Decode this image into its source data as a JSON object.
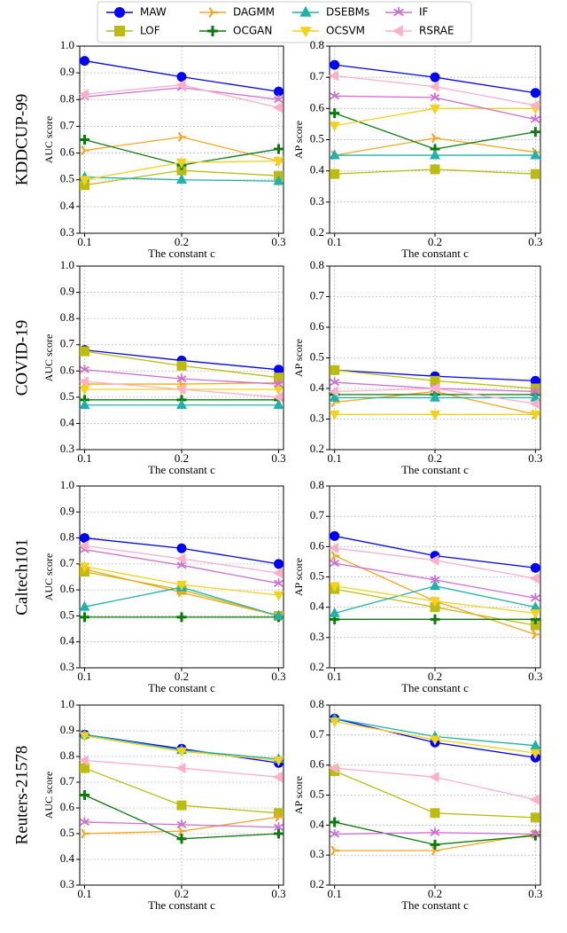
{
  "chart_data": [
    {
      "type": "line",
      "row_label": "KDDCUP-99",
      "xlabel": "The constant c",
      "ylabel": "AUC score",
      "x": [
        0.1,
        0.2,
        0.3
      ],
      "xlim": [
        0.095,
        0.305
      ],
      "xticks": [
        0.1,
        0.2,
        0.3
      ],
      "ylim": [
        0.3,
        1.0
      ],
      "yticks": [
        0.3,
        0.4,
        0.5,
        0.6,
        0.7,
        0.8,
        0.9,
        {
          "value": 1.0,
          "label": "1.0"
        }
      ],
      "grid": true,
      "series": [
        {
          "name": "MAW",
          "color": "#0000ff",
          "marker": "circle",
          "values": [
            0.945,
            0.885,
            0.83
          ]
        },
        {
          "name": "LOF",
          "color": "#bcbc10",
          "marker": "square",
          "values": [
            0.48,
            0.535,
            0.515
          ]
        },
        {
          "name": "DAGMM",
          "color": "#f5a623",
          "marker": "tri",
          "values": [
            0.61,
            0.66,
            0.57
          ]
        },
        {
          "name": "OCGAN",
          "color": "#0a7a0a",
          "marker": "plus",
          "values": [
            0.65,
            0.555,
            0.615
          ]
        },
        {
          "name": "DSEBMs",
          "color": "#20b2aa",
          "marker": "up",
          "values": [
            0.51,
            0.5,
            0.495
          ]
        },
        {
          "name": "OCSVM",
          "color": "#f2d21b",
          "marker": "down",
          "values": [
            0.5,
            0.565,
            0.57
          ]
        },
        {
          "name": "IF",
          "color": "#d070d0",
          "marker": "star",
          "values": [
            0.81,
            0.845,
            0.8
          ]
        },
        {
          "name": "RSRAE",
          "color": "#ffb0c8",
          "marker": "left",
          "values": [
            0.82,
            0.855,
            0.77
          ]
        }
      ]
    },
    {
      "type": "line",
      "xlabel": "The constant c",
      "ylabel": "AP score",
      "x": [
        0.1,
        0.2,
        0.3
      ],
      "xlim": [
        0.095,
        0.305
      ],
      "xticks": [
        0.1,
        0.2,
        0.3
      ],
      "ylim": [
        0.2,
        0.8
      ],
      "yticks": [
        0.2,
        0.3,
        0.4,
        0.5,
        0.6,
        0.7,
        0.8
      ],
      "grid": true,
      "series": [
        {
          "name": "MAW",
          "color": "#0000ff",
          "marker": "circle",
          "values": [
            0.74,
            0.7,
            0.65
          ]
        },
        {
          "name": "LOF",
          "color": "#bcbc10",
          "marker": "square",
          "values": [
            0.39,
            0.405,
            0.39
          ]
        },
        {
          "name": "DAGMM",
          "color": "#f5a623",
          "marker": "tri",
          "values": [
            0.45,
            0.505,
            0.46
          ]
        },
        {
          "name": "OCGAN",
          "color": "#0a7a0a",
          "marker": "plus",
          "values": [
            0.585,
            0.47,
            0.525
          ]
        },
        {
          "name": "DSEBMs",
          "color": "#20b2aa",
          "marker": "up",
          "values": [
            0.45,
            0.45,
            0.45
          ]
        },
        {
          "name": "OCSVM",
          "color": "#f2d21b",
          "marker": "down",
          "values": [
            0.545,
            0.6,
            0.6
          ]
        },
        {
          "name": "IF",
          "color": "#d070d0",
          "marker": "star",
          "values": [
            0.64,
            0.635,
            0.565
          ]
        },
        {
          "name": "RSRAE",
          "color": "#ffb0c8",
          "marker": "left",
          "values": [
            0.705,
            0.67,
            0.61
          ]
        }
      ]
    },
    {
      "type": "line",
      "row_label": "COVID-19",
      "xlabel": "The constant c",
      "ylabel": "AUC score",
      "x": [
        0.1,
        0.2,
        0.3
      ],
      "xlim": [
        0.095,
        0.305
      ],
      "xticks": [
        0.1,
        0.2,
        0.3
      ],
      "ylim": [
        0.3,
        1.0
      ],
      "yticks": [
        0.3,
        0.4,
        0.5,
        0.6,
        0.7,
        0.8,
        0.9,
        {
          "value": 1.0,
          "label": "1.0"
        }
      ],
      "grid": true,
      "series": [
        {
          "name": "MAW",
          "color": "#0000ff",
          "marker": "circle",
          "values": [
            0.68,
            0.64,
            0.605
          ]
        },
        {
          "name": "LOF",
          "color": "#bcbc10",
          "marker": "square",
          "values": [
            0.675,
            0.62,
            0.575
          ]
        },
        {
          "name": "DAGMM",
          "color": "#f5a623",
          "marker": "tri",
          "values": [
            0.55,
            0.55,
            0.555
          ]
        },
        {
          "name": "OCGAN",
          "color": "#0a7a0a",
          "marker": "plus",
          "values": [
            0.49,
            0.49,
            0.49
          ]
        },
        {
          "name": "DSEBMs",
          "color": "#20b2aa",
          "marker": "up",
          "values": [
            0.47,
            0.47,
            0.47
          ]
        },
        {
          "name": "OCSVM",
          "color": "#f2d21b",
          "marker": "down",
          "values": [
            0.53,
            0.53,
            0.53
          ]
        },
        {
          "name": "IF",
          "color": "#d070d0",
          "marker": "star",
          "values": [
            0.605,
            0.57,
            0.55
          ]
        },
        {
          "name": "RSRAE",
          "color": "#ffb0c8",
          "marker": "left",
          "values": [
            0.56,
            0.53,
            0.5
          ]
        }
      ]
    },
    {
      "type": "line",
      "xlabel": "The constant c",
      "ylabel": "AP score",
      "x": [
        0.1,
        0.2,
        0.3
      ],
      "xlim": [
        0.095,
        0.305
      ],
      "xticks": [
        0.1,
        0.2,
        0.3
      ],
      "ylim": [
        0.2,
        0.8
      ],
      "yticks": [
        0.2,
        0.3,
        0.4,
        0.5,
        0.6,
        0.7,
        0.8
      ],
      "grid": true,
      "series": [
        {
          "name": "MAW",
          "color": "#0000ff",
          "marker": "circle",
          "values": [
            0.46,
            0.44,
            0.425
          ]
        },
        {
          "name": "LOF",
          "color": "#bcbc10",
          "marker": "square",
          "values": [
            0.46,
            0.425,
            0.4
          ]
        },
        {
          "name": "DAGMM",
          "color": "#f5a623",
          "marker": "tri",
          "values": [
            0.355,
            0.39,
            0.315
          ]
        },
        {
          "name": "OCGAN",
          "color": "#0a7a0a",
          "marker": "plus",
          "values": [
            0.38,
            0.38,
            0.38
          ]
        },
        {
          "name": "DSEBMs",
          "color": "#20b2aa",
          "marker": "up",
          "values": [
            0.37,
            0.37,
            0.37
          ]
        },
        {
          "name": "OCSVM",
          "color": "#f2d21b",
          "marker": "down",
          "values": [
            0.315,
            0.315,
            0.315
          ]
        },
        {
          "name": "IF",
          "color": "#d070d0",
          "marker": "star",
          "values": [
            0.42,
            0.4,
            0.39
          ]
        },
        {
          "name": "RSRAE",
          "color": "#ffb0c8",
          "marker": "left",
          "values": [
            0.39,
            0.4,
            0.35
          ]
        }
      ]
    },
    {
      "type": "line",
      "row_label": "Caltech101",
      "xlabel": "The constant c",
      "ylabel": "AUC score",
      "x": [
        0.1,
        0.2,
        0.3
      ],
      "xlim": [
        0.095,
        0.305
      ],
      "xticks": [
        0.1,
        0.2,
        0.3
      ],
      "ylim": [
        0.3,
        1.0
      ],
      "yticks": [
        0.3,
        0.4,
        0.5,
        0.6,
        0.7,
        0.8,
        0.9,
        {
          "value": 1.0,
          "label": "1.0"
        }
      ],
      "grid": true,
      "series": [
        {
          "name": "MAW",
          "color": "#0000ff",
          "marker": "circle",
          "values": [
            0.8,
            0.76,
            0.7
          ]
        },
        {
          "name": "LOF",
          "color": "#bcbc10",
          "marker": "square",
          "values": [
            0.67,
            0.6,
            0.5
          ]
        },
        {
          "name": "DAGMM",
          "color": "#f5a623",
          "marker": "tri",
          "values": [
            0.68,
            0.59,
            0.5
          ]
        },
        {
          "name": "OCGAN",
          "color": "#0a7a0a",
          "marker": "plus",
          "values": [
            0.495,
            0.495,
            0.495
          ]
        },
        {
          "name": "DSEBMs",
          "color": "#20b2aa",
          "marker": "up",
          "values": [
            0.535,
            0.61,
            0.5
          ]
        },
        {
          "name": "OCSVM",
          "color": "#f2d21b",
          "marker": "down",
          "values": [
            0.69,
            0.62,
            0.58
          ]
        },
        {
          "name": "IF",
          "color": "#d070d0",
          "marker": "star",
          "values": [
            0.755,
            0.695,
            0.625
          ]
        },
        {
          "name": "RSRAE",
          "color": "#ffb0c8",
          "marker": "left",
          "values": [
            0.77,
            0.72,
            0.665
          ]
        }
      ]
    },
    {
      "type": "line",
      "xlabel": "The constant c",
      "ylabel": "AP score",
      "x": [
        0.1,
        0.2,
        0.3
      ],
      "xlim": [
        0.095,
        0.305
      ],
      "xticks": [
        0.1,
        0.2,
        0.3
      ],
      "ylim": [
        0.2,
        0.8
      ],
      "yticks": [
        0.2,
        0.3,
        0.4,
        0.5,
        0.6,
        0.7,
        0.8
      ],
      "grid": true,
      "series": [
        {
          "name": "MAW",
          "color": "#0000ff",
          "marker": "circle",
          "values": [
            0.635,
            0.57,
            0.53
          ]
        },
        {
          "name": "LOF",
          "color": "#bcbc10",
          "marker": "square",
          "values": [
            0.46,
            0.4,
            0.34
          ]
        },
        {
          "name": "DAGMM",
          "color": "#f5a623",
          "marker": "tri",
          "values": [
            0.57,
            0.42,
            0.31
          ]
        },
        {
          "name": "OCGAN",
          "color": "#0a7a0a",
          "marker": "plus",
          "values": [
            0.36,
            0.36,
            0.36
          ]
        },
        {
          "name": "DSEBMs",
          "color": "#20b2aa",
          "marker": "up",
          "values": [
            0.38,
            0.47,
            0.4
          ]
        },
        {
          "name": "OCSVM",
          "color": "#f2d21b",
          "marker": "down",
          "values": [
            0.47,
            0.42,
            0.38
          ]
        },
        {
          "name": "IF",
          "color": "#d070d0",
          "marker": "star",
          "values": [
            0.545,
            0.49,
            0.43
          ]
        },
        {
          "name": "RSRAE",
          "color": "#ffb0c8",
          "marker": "left",
          "values": [
            0.595,
            0.555,
            0.495
          ]
        }
      ]
    },
    {
      "type": "line",
      "row_label": "Reuters-21578",
      "xlabel": "The constant c",
      "ylabel": "AUC score",
      "x": [
        0.1,
        0.2,
        0.3
      ],
      "xlim": [
        0.095,
        0.305
      ],
      "xticks": [
        0.1,
        0.2,
        0.3
      ],
      "ylim": [
        0.3,
        1.0
      ],
      "yticks": [
        0.3,
        0.4,
        0.5,
        0.6,
        0.7,
        0.8,
        0.9,
        {
          "value": 1.0,
          "label": "1.0"
        }
      ],
      "grid": true,
      "series": [
        {
          "name": "MAW",
          "color": "#0000ff",
          "marker": "circle",
          "values": [
            0.885,
            0.83,
            0.775
          ]
        },
        {
          "name": "LOF",
          "color": "#bcbc10",
          "marker": "square",
          "values": [
            0.755,
            0.61,
            0.58
          ]
        },
        {
          "name": "DAGMM",
          "color": "#f5a623",
          "marker": "tri",
          "values": [
            0.5,
            0.51,
            0.565
          ]
        },
        {
          "name": "OCGAN",
          "color": "#0a7a0a",
          "marker": "plus",
          "values": [
            0.65,
            0.48,
            0.5
          ]
        },
        {
          "name": "DSEBMs",
          "color": "#20b2aa",
          "marker": "up",
          "values": [
            0.885,
            0.825,
            0.79
          ]
        },
        {
          "name": "OCSVM",
          "color": "#f2d21b",
          "marker": "down",
          "values": [
            0.88,
            0.82,
            0.785
          ]
        },
        {
          "name": "IF",
          "color": "#d070d0",
          "marker": "star",
          "values": [
            0.545,
            0.535,
            0.525
          ]
        },
        {
          "name": "RSRAE",
          "color": "#ffb0c8",
          "marker": "left",
          "values": [
            0.785,
            0.755,
            0.72
          ]
        }
      ]
    },
    {
      "type": "line",
      "xlabel": "The constant c",
      "ylabel": "AP score",
      "x": [
        0.1,
        0.2,
        0.3
      ],
      "xlim": [
        0.095,
        0.305
      ],
      "xticks": [
        0.1,
        0.2,
        0.3
      ],
      "ylim": [
        0.2,
        0.8
      ],
      "yticks": [
        0.2,
        0.3,
        0.4,
        0.5,
        0.6,
        0.7,
        0.8
      ],
      "grid": true,
      "series": [
        {
          "name": "MAW",
          "color": "#0000ff",
          "marker": "circle",
          "values": [
            0.755,
            0.675,
            0.625
          ]
        },
        {
          "name": "LOF",
          "color": "#bcbc10",
          "marker": "square",
          "values": [
            0.58,
            0.44,
            0.425
          ]
        },
        {
          "name": "DAGMM",
          "color": "#f5a623",
          "marker": "tri",
          "values": [
            0.315,
            0.315,
            0.37
          ]
        },
        {
          "name": "OCGAN",
          "color": "#0a7a0a",
          "marker": "plus",
          "values": [
            0.41,
            0.335,
            0.365
          ]
        },
        {
          "name": "DSEBMs",
          "color": "#20b2aa",
          "marker": "up",
          "values": [
            0.755,
            0.695,
            0.665
          ]
        },
        {
          "name": "OCSVM",
          "color": "#f2d21b",
          "marker": "down",
          "values": [
            0.745,
            0.685,
            0.64
          ]
        },
        {
          "name": "IF",
          "color": "#d070d0",
          "marker": "star",
          "values": [
            0.37,
            0.375,
            0.37
          ]
        },
        {
          "name": "RSRAE",
          "color": "#ffb0c8",
          "marker": "left",
          "values": [
            0.59,
            0.56,
            0.485
          ]
        }
      ]
    }
  ]
}
